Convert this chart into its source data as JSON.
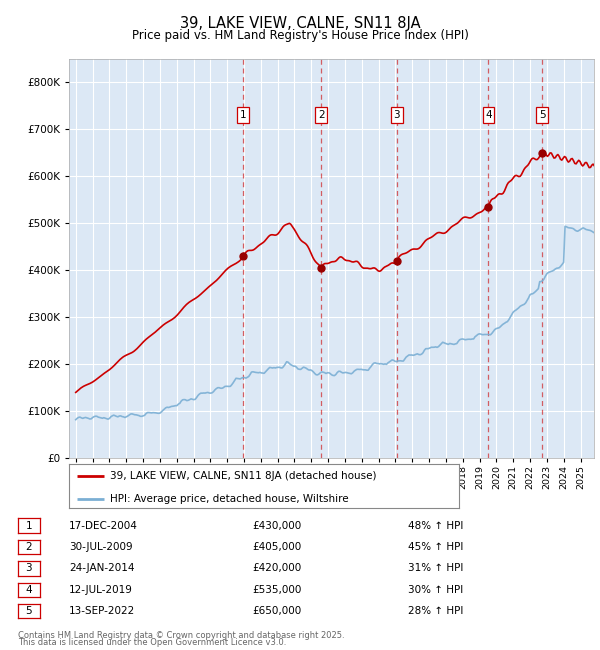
{
  "title": "39, LAKE VIEW, CALNE, SN11 8JA",
  "subtitle": "Price paid vs. HM Land Registry's House Price Index (HPI)",
  "legend_line1": "39, LAKE VIEW, CALNE, SN11 8JA (detached house)",
  "legend_line2": "HPI: Average price, detached house, Wiltshire",
  "footer1": "Contains HM Land Registry data © Crown copyright and database right 2025.",
  "footer2": "This data is licensed under the Open Government Licence v3.0.",
  "sales": [
    {
      "num": 1,
      "date": "2004-12-17",
      "price": 430000,
      "pct": "48% ↑ HPI"
    },
    {
      "num": 2,
      "date": "2009-07-30",
      "price": 405000,
      "pct": "45% ↑ HPI"
    },
    {
      "num": 3,
      "date": "2014-01-24",
      "price": 420000,
      "pct": "31% ↑ HPI"
    },
    {
      "num": 4,
      "date": "2019-07-12",
      "price": 535000,
      "pct": "30% ↑ HPI"
    },
    {
      "num": 5,
      "date": "2022-09-13",
      "price": 650000,
      "pct": "28% ↑ HPI"
    }
  ],
  "sale_labels": [
    "17-DEC-2004",
    "30-JUL-2009",
    "24-JAN-2014",
    "12-JUL-2019",
    "13-SEP-2022"
  ],
  "sale_year_floats": [
    2004.96,
    2009.58,
    2014.07,
    2019.53,
    2022.71
  ],
  "sale_prices": [
    430000,
    405000,
    420000,
    535000,
    650000
  ],
  "hpi_color": "#7bafd4",
  "price_color": "#cc0000",
  "background_color": "#dce8f5",
  "grid_color": "#ffffff",
  "ylim": [
    0,
    850000
  ],
  "yticks": [
    0,
    100000,
    200000,
    300000,
    400000,
    500000,
    600000,
    700000,
    800000
  ],
  "xlim_start": 1994.6,
  "xlim_end": 2025.8
}
